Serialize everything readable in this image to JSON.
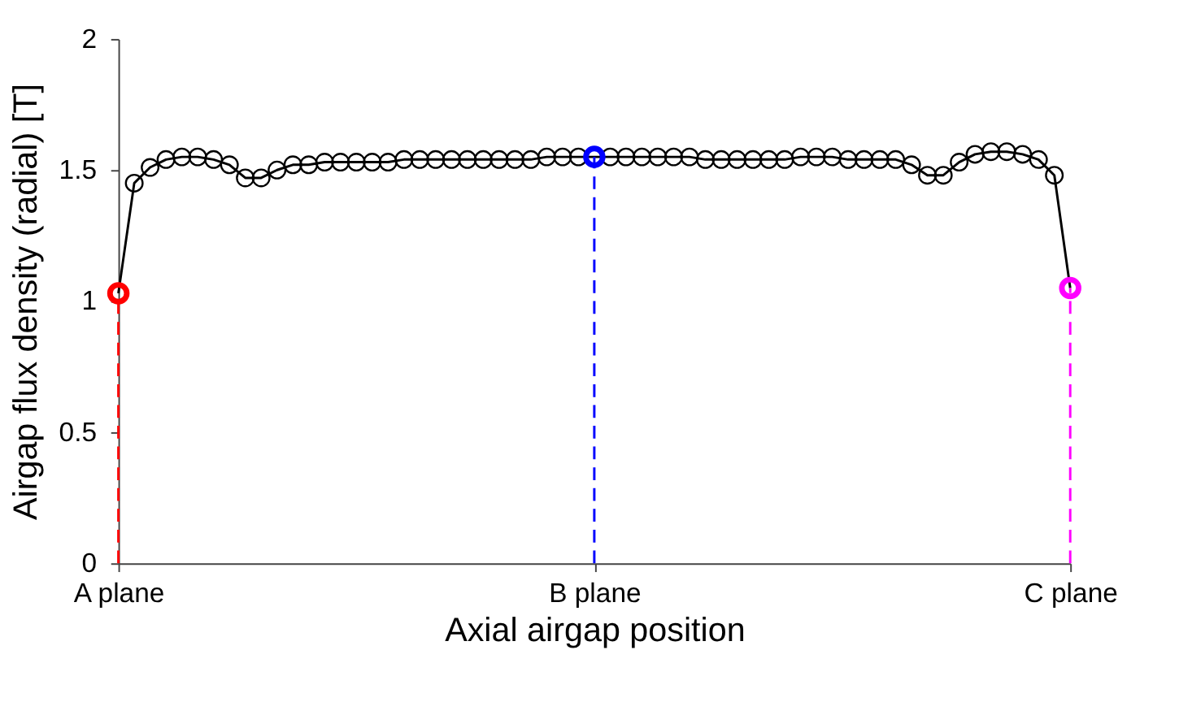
{
  "chart_data": {
    "type": "line",
    "xlabel": "Axial airgap position",
    "ylabel": "Airgap flux density (radial) [T]",
    "categories": [
      "A plane",
      null,
      null,
      null,
      null,
      null,
      null,
      null,
      null,
      null,
      null,
      null,
      null,
      null,
      null,
      null,
      null,
      null,
      null,
      null,
      null,
      null,
      null,
      null,
      null,
      null,
      null,
      null,
      null,
      null,
      "B plane",
      null,
      null,
      null,
      null,
      null,
      null,
      null,
      null,
      null,
      null,
      null,
      null,
      null,
      null,
      null,
      null,
      null,
      null,
      null,
      null,
      null,
      null,
      null,
      null,
      null,
      null,
      null,
      null,
      null,
      "C plane"
    ],
    "ylim": [
      0,
      2
    ],
    "yticks": [
      0,
      0.5,
      1,
      1.5,
      2
    ],
    "grid": false,
    "series": [
      {
        "marker": "circle",
        "line_style": "solid",
        "color": "#000000",
        "values": [
          1.03,
          1.45,
          1.51,
          1.54,
          1.55,
          1.55,
          1.54,
          1.52,
          1.47,
          1.47,
          1.5,
          1.52,
          1.52,
          1.53,
          1.53,
          1.53,
          1.53,
          1.53,
          1.54,
          1.54,
          1.54,
          1.54,
          1.54,
          1.54,
          1.54,
          1.54,
          1.54,
          1.55,
          1.55,
          1.55,
          1.55,
          1.55,
          1.55,
          1.55,
          1.55,
          1.55,
          1.55,
          1.54,
          1.54,
          1.54,
          1.54,
          1.54,
          1.54,
          1.55,
          1.55,
          1.55,
          1.54,
          1.54,
          1.54,
          1.54,
          1.52,
          1.48,
          1.48,
          1.53,
          1.56,
          1.57,
          1.57,
          1.56,
          1.54,
          1.48,
          1.05
        ]
      },
      {
        "type": "lollipop",
        "marker": "circle",
        "line_style": "dashed",
        "color": "#ff0000",
        "values": [
          1.03,
          null,
          null,
          null,
          null,
          null,
          null,
          null,
          null,
          null,
          null,
          null,
          null,
          null,
          null,
          null,
          null,
          null,
          null,
          null,
          null,
          null,
          null,
          null,
          null,
          null,
          null,
          null,
          null,
          null,
          null,
          null,
          null,
          null,
          null,
          null,
          null,
          null,
          null,
          null,
          null,
          null,
          null,
          null,
          null,
          null,
          null,
          null,
          null,
          null,
          null,
          null,
          null,
          null,
          null,
          null,
          null,
          null,
          null,
          null,
          null
        ]
      },
      {
        "type": "lollipop",
        "marker": "circle",
        "line_style": "dashed",
        "color": "#0000ff",
        "values": [
          null,
          null,
          null,
          null,
          null,
          null,
          null,
          null,
          null,
          null,
          null,
          null,
          null,
          null,
          null,
          null,
          null,
          null,
          null,
          null,
          null,
          null,
          null,
          null,
          null,
          null,
          null,
          null,
          null,
          null,
          1.55,
          null,
          null,
          null,
          null,
          null,
          null,
          null,
          null,
          null,
          null,
          null,
          null,
          null,
          null,
          null,
          null,
          null,
          null,
          null,
          null,
          null,
          null,
          null,
          null,
          null,
          null,
          null,
          null,
          null,
          null
        ]
      },
      {
        "type": "lollipop",
        "marker": "circle",
        "line_style": "dashed",
        "color": "#ff00ff",
        "values": [
          null,
          null,
          null,
          null,
          null,
          null,
          null,
          null,
          null,
          null,
          null,
          null,
          null,
          null,
          null,
          null,
          null,
          null,
          null,
          null,
          null,
          null,
          null,
          null,
          null,
          null,
          null,
          null,
          null,
          null,
          null,
          null,
          null,
          null,
          null,
          null,
          null,
          null,
          null,
          null,
          null,
          null,
          null,
          null,
          null,
          null,
          null,
          null,
          null,
          null,
          null,
          null,
          null,
          null,
          null,
          null,
          null,
          null,
          null,
          null,
          1.05
        ]
      }
    ]
  }
}
